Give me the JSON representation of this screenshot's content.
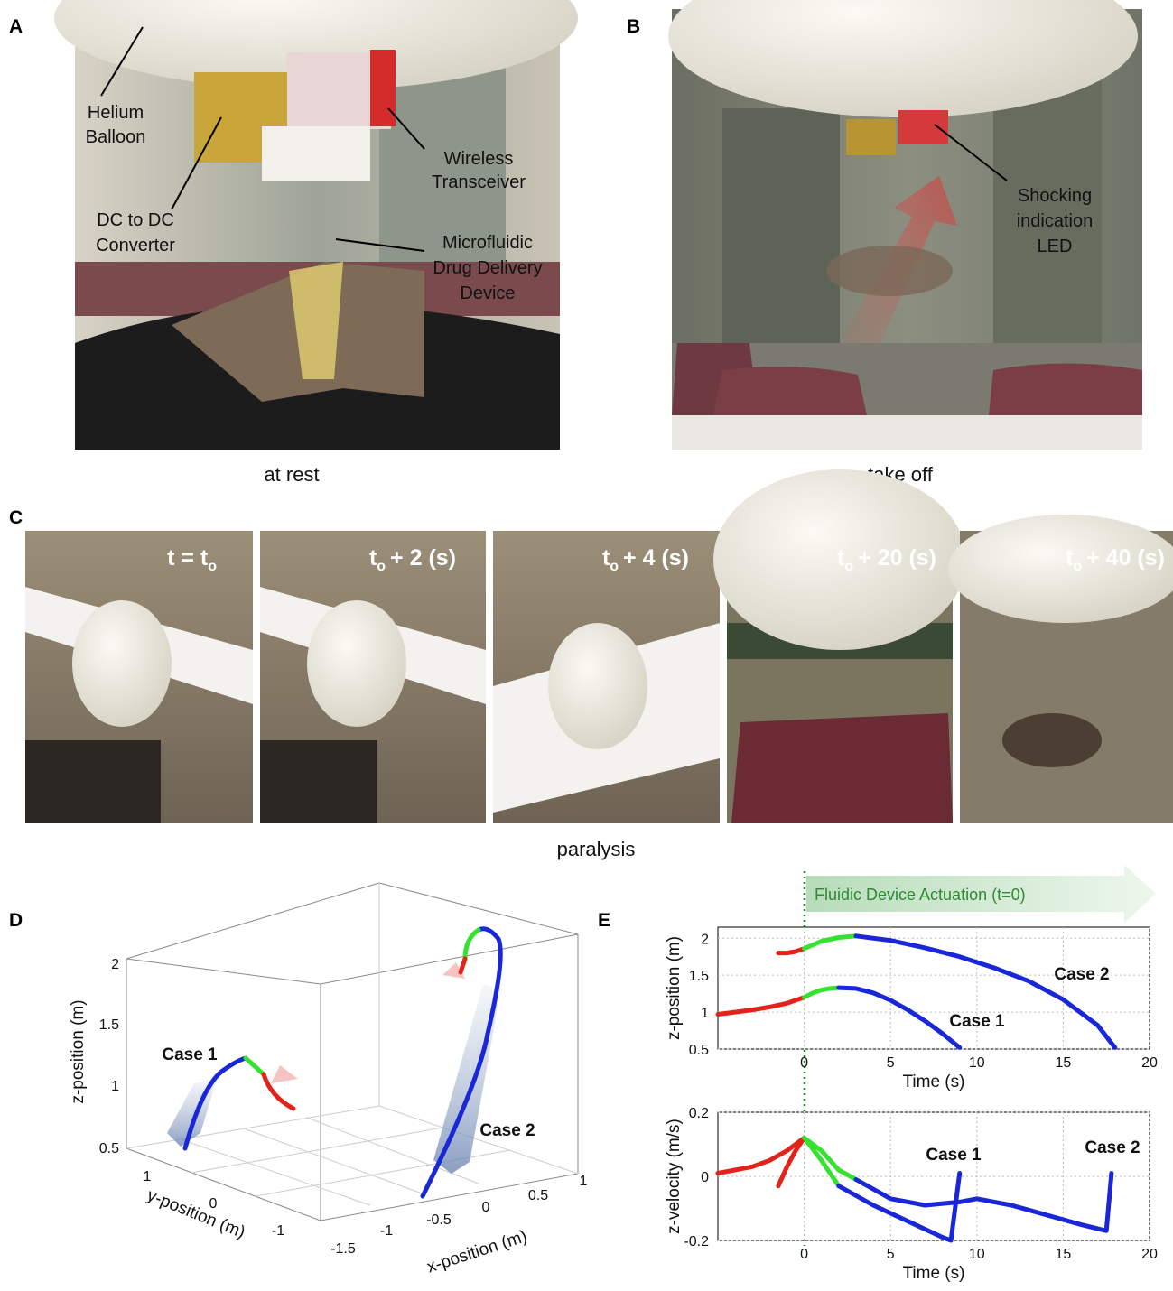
{
  "panel_labels": [
    "A",
    "B",
    "C",
    "D",
    "E"
  ],
  "panel_a": {
    "caption": "at rest",
    "annotations": [
      [
        "Helium",
        "Balloon"
      ],
      [
        "DC to DC",
        "Converter"
      ],
      [
        "Wireless",
        "Transceiver"
      ],
      [
        "Microfluidic",
        "Drug Delivery",
        "Device"
      ]
    ]
  },
  "panel_b": {
    "caption": "take off",
    "annotations": [
      [
        "Shocking",
        "indication",
        "LED"
      ]
    ]
  },
  "panel_c": {
    "caption": "paralysis",
    "frames": [
      {
        "lead": "t = t",
        "sub": "o"
      },
      {
        "lead": "t",
        "sub": "o",
        "tail": "+ 2 (s)"
      },
      {
        "lead": "t",
        "sub": "o",
        "tail": "+ 4 (s)"
      },
      {
        "lead": "t",
        "sub": "o",
        "tail": "+ 20 (s)"
      },
      {
        "lead": "t",
        "sub": "o",
        "tail": "+ 40 (s)"
      }
    ]
  },
  "panel_d": {
    "zlabel": "z-position (m)",
    "ylabel": "y-position (m)",
    "xlabel": "x-position (m)",
    "zticks": [
      0.5,
      1,
      1.5,
      2
    ],
    "yticks": [
      1,
      0,
      -1
    ],
    "xticks": [
      -1.5,
      -1,
      -0.5,
      0,
      0.5,
      1
    ],
    "labels": [
      "Case 1",
      "Case 2"
    ]
  },
  "panel_e": {
    "banner": "Fluidic Device Actuation (t=0)"
  },
  "chart_data": [
    {
      "type": "line",
      "xlabel": "Time (s)",
      "ylabel": "z-position (m)",
      "xlim": [
        -5,
        20
      ],
      "xticks": [
        0,
        5,
        10,
        15,
        20
      ],
      "ylim": [
        0.5,
        2.15
      ],
      "yticks": [
        0.5,
        1,
        1.5,
        2
      ],
      "grid": true,
      "annotations": [
        "Case 2",
        "Case 1"
      ],
      "series": [
        {
          "color": "#e2231a",
          "x": [
            -5,
            -4,
            -3,
            -2,
            -1,
            0
          ],
          "values": [
            0.97,
            1.0,
            1.03,
            1.07,
            1.12,
            1.2
          ]
        },
        {
          "color": "#35e22f",
          "x": [
            0,
            0.5,
            1,
            1.5,
            2
          ],
          "values": [
            1.2,
            1.26,
            1.3,
            1.32,
            1.33
          ]
        },
        {
          "color": "#1a27d8",
          "x": [
            2,
            3,
            4,
            5,
            6,
            7,
            8,
            9
          ],
          "values": [
            1.33,
            1.32,
            1.26,
            1.16,
            1.03,
            0.88,
            0.71,
            0.52
          ]
        },
        {
          "color": "#e2231a",
          "x": [
            -1.5,
            -1,
            -0.5,
            0
          ],
          "values": [
            1.8,
            1.8,
            1.82,
            1.86
          ]
        },
        {
          "color": "#35e22f",
          "x": [
            0,
            1,
            2,
            3
          ],
          "values": [
            1.86,
            1.96,
            2.01,
            2.03
          ]
        },
        {
          "color": "#1a27d8",
          "x": [
            3,
            5,
            7,
            9,
            11,
            13,
            15,
            17,
            18
          ],
          "values": [
            2.03,
            1.97,
            1.87,
            1.75,
            1.6,
            1.42,
            1.17,
            0.82,
            0.52
          ]
        }
      ]
    },
    {
      "type": "line",
      "xlabel": "Time (s)",
      "ylabel": "z-velocity (m/s)",
      "xlim": [
        -5,
        20
      ],
      "xticks": [
        0,
        5,
        10,
        15,
        20
      ],
      "ylim": [
        -0.2,
        0.2
      ],
      "yticks": [
        -0.2,
        0,
        0.2
      ],
      "grid": true,
      "annotations": [
        "Case 1",
        "Case 2"
      ],
      "series": [
        {
          "color": "#e2231a",
          "x": [
            -5,
            -4,
            -3,
            -2,
            -1,
            0
          ],
          "values": [
            0.01,
            0.02,
            0.03,
            0.05,
            0.08,
            0.12
          ]
        },
        {
          "color": "#35e22f",
          "x": [
            0,
            1,
            2
          ],
          "values": [
            0.12,
            0.05,
            -0.03
          ]
        },
        {
          "color": "#1a27d8",
          "x": [
            2,
            4,
            6,
            8,
            8.5,
            9
          ],
          "values": [
            -0.03,
            -0.09,
            -0.14,
            -0.19,
            -0.2,
            0.01
          ]
        },
        {
          "color": "#e2231a",
          "x": [
            -1.5,
            -1,
            -0.5,
            0
          ],
          "values": [
            -0.03,
            0.03,
            0.08,
            0.12
          ]
        },
        {
          "color": "#35e22f",
          "x": [
            0,
            1,
            2,
            3
          ],
          "values": [
            0.12,
            0.08,
            0.02,
            -0.01
          ]
        },
        {
          "color": "#1a27d8",
          "x": [
            3,
            5,
            7,
            9,
            10,
            12,
            14,
            16,
            17.5,
            17.8
          ],
          "values": [
            -0.01,
            -0.07,
            -0.09,
            -0.08,
            -0.07,
            -0.09,
            -0.12,
            -0.15,
            -0.17,
            0.01
          ]
        }
      ]
    }
  ]
}
